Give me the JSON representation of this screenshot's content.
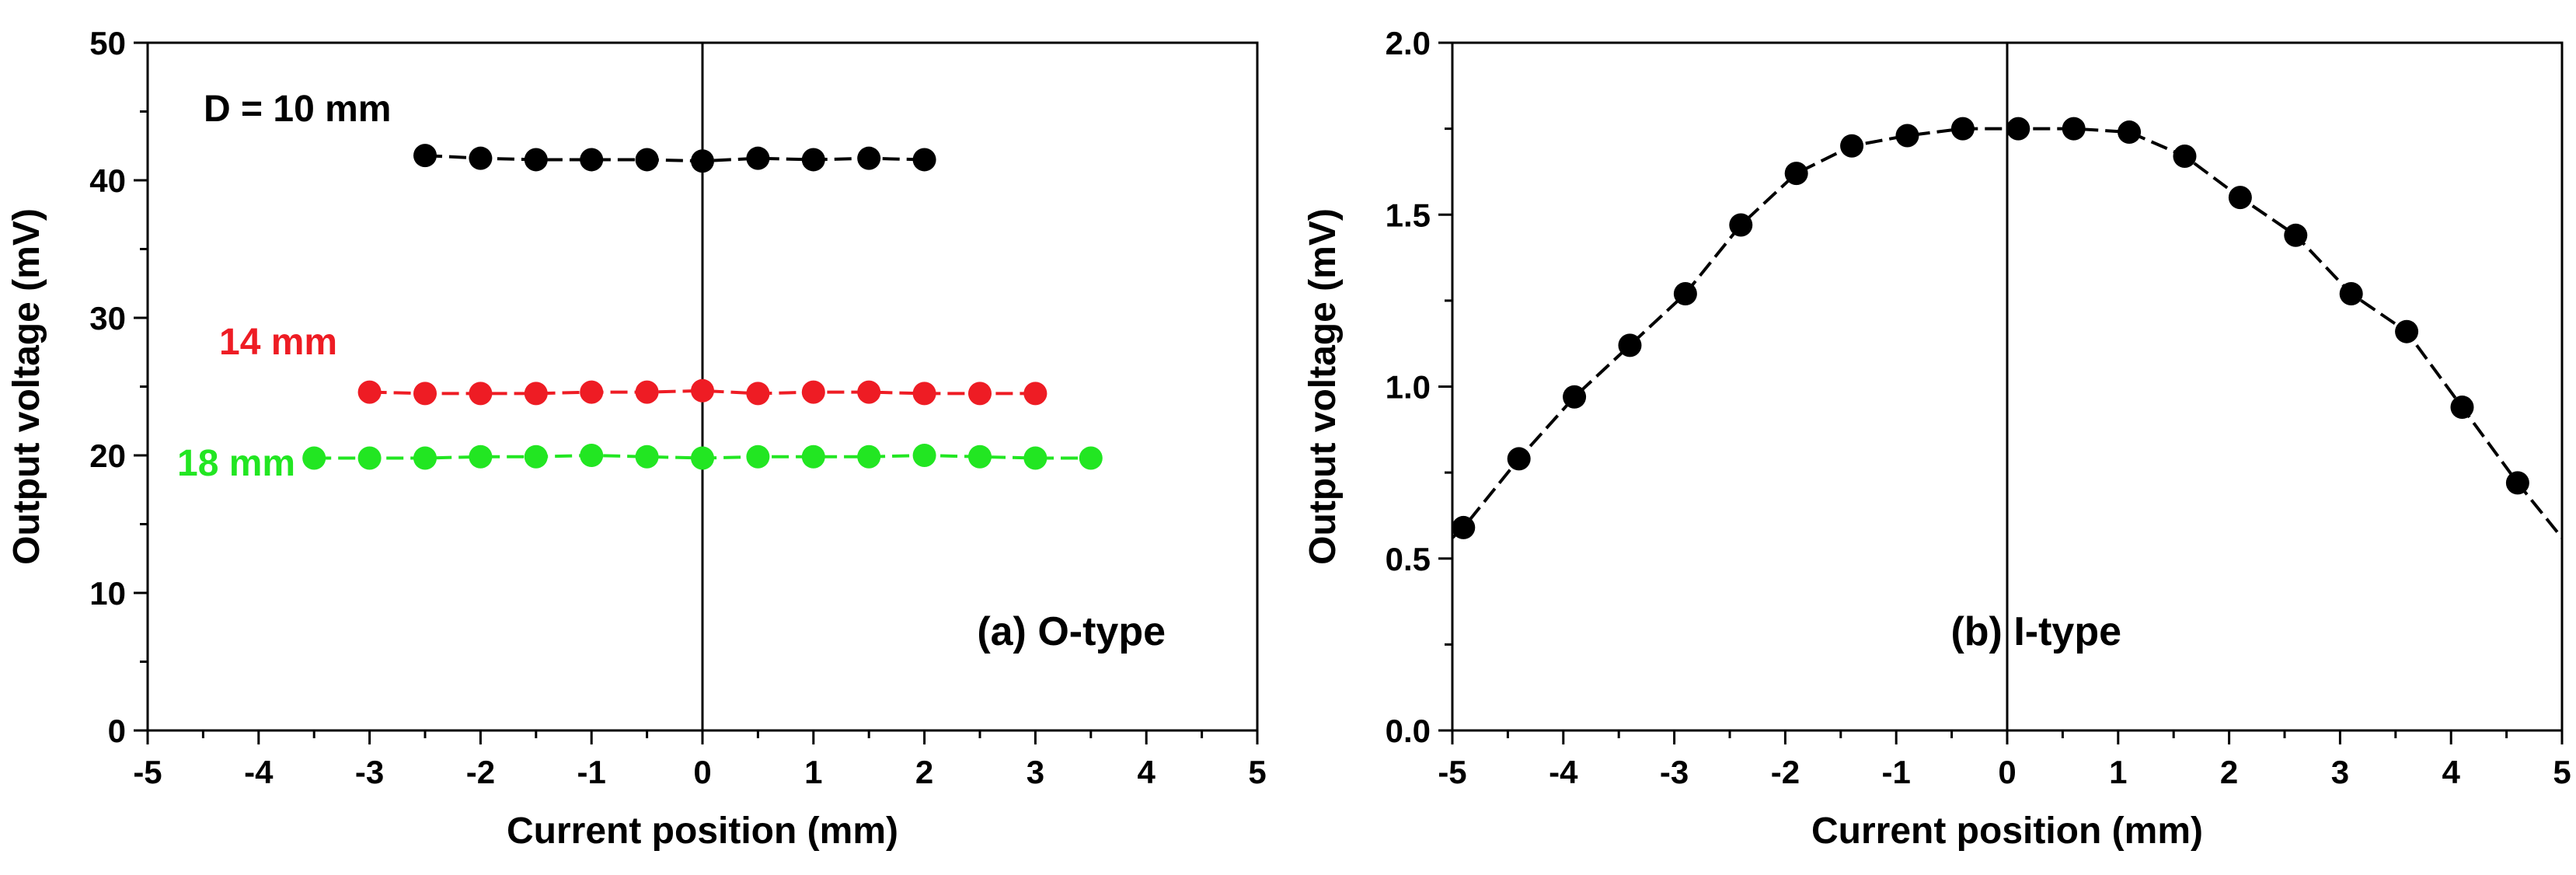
{
  "chart_data": [
    {
      "type": "line",
      "panel_label": "(a) O-type",
      "xlabel": "Current position (mm)",
      "ylabel": "Output voltage (mV)",
      "xlim": [
        -5,
        5
      ],
      "ylim": [
        0,
        50
      ],
      "xticks": [
        "-5",
        "-4",
        "-3",
        "-2",
        "-1",
        "0",
        "1",
        "2",
        "3",
        "4",
        "5"
      ],
      "yticks": [
        "0",
        "10",
        "20",
        "30",
        "40",
        "50"
      ],
      "reference_line_x": 0,
      "series": [
        {
          "name": "D = 10 mm",
          "label": "D = 10 mm",
          "color": "#000000",
          "x": [
            -2.5,
            -2.0,
            -1.5,
            -1.0,
            -0.5,
            0.0,
            0.5,
            1.0,
            1.5,
            2.0
          ],
          "y": [
            41.8,
            41.6,
            41.5,
            41.5,
            41.5,
            41.4,
            41.6,
            41.5,
            41.6,
            41.5
          ]
        },
        {
          "name": "14 mm",
          "label": "14 mm",
          "color": "#ee1c24",
          "x": [
            -3.0,
            -2.5,
            -2.0,
            -1.5,
            -1.0,
            -0.5,
            0.0,
            0.5,
            1.0,
            1.5,
            2.0,
            2.5,
            3.0
          ],
          "y": [
            24.6,
            24.5,
            24.5,
            24.5,
            24.6,
            24.6,
            24.7,
            24.5,
            24.6,
            24.6,
            24.5,
            24.5,
            24.5
          ]
        },
        {
          "name": "18 mm",
          "label": "18 mm",
          "color": "#22e622",
          "x": [
            -3.5,
            -3.0,
            -2.5,
            -2.0,
            -1.5,
            -1.0,
            -0.5,
            0.0,
            0.5,
            1.0,
            1.5,
            2.0,
            2.5,
            3.0,
            3.5
          ],
          "y": [
            19.8,
            19.8,
            19.8,
            19.9,
            19.9,
            20.0,
            19.9,
            19.8,
            19.9,
            19.9,
            19.9,
            20.0,
            19.9,
            19.8,
            19.8
          ]
        }
      ]
    },
    {
      "type": "line",
      "panel_label": "(b) I-type",
      "xlabel": "Current position (mm)",
      "ylabel": "Output voltage (mV)",
      "xlim": [
        -5,
        5
      ],
      "ylim": [
        0,
        2.0
      ],
      "xticks": [
        "-5",
        "-4",
        "-3",
        "-2",
        "-1",
        "0",
        "1",
        "2",
        "3",
        "4",
        "5"
      ],
      "yticks": [
        "0.0",
        "0.5",
        "1.0",
        "1.5",
        "2.0"
      ],
      "reference_line_x": 0,
      "series": [
        {
          "name": "I-type",
          "color": "#000000",
          "x": [
            -4.9,
            -4.4,
            -3.9,
            -3.4,
            -2.9,
            -2.4,
            -1.9,
            -1.4,
            -0.9,
            -0.4,
            0.1,
            0.6,
            1.1,
            1.6,
            2.1,
            2.6,
            3.1,
            3.6,
            4.1,
            4.6
          ],
          "y": [
            0.59,
            0.79,
            0.97,
            1.12,
            1.27,
            1.47,
            1.62,
            1.7,
            1.73,
            1.75,
            1.75,
            1.75,
            1.74,
            1.67,
            1.55,
            1.44,
            1.27,
            1.16,
            0.94,
            0.72
          ],
          "curve_ends": [
            [
              -5.0,
              0.56
            ],
            [
              5.0,
              0.56
            ]
          ]
        }
      ]
    }
  ]
}
